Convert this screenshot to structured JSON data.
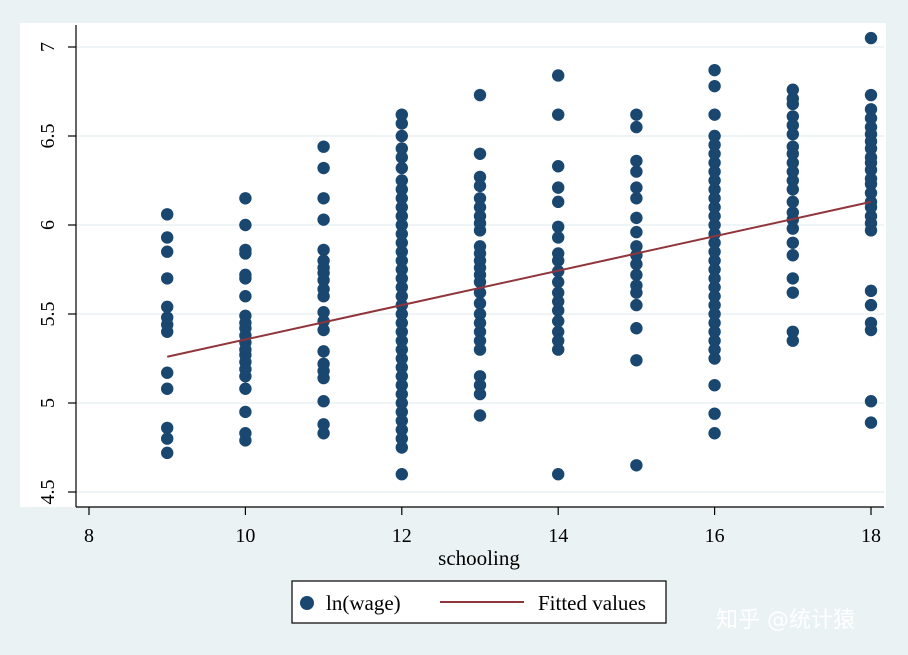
{
  "chart_data": {
    "type": "scatter",
    "title": "",
    "xlabel": "schooling",
    "ylabel": "",
    "xlim": [
      8,
      18
    ],
    "ylim": [
      4.5,
      7
    ],
    "x_ticks": [
      "8",
      "10",
      "12",
      "14",
      "16",
      "18"
    ],
    "y_ticks": [
      "4.5",
      "5",
      "5.5",
      "6",
      "6.5",
      "7"
    ],
    "grid": "horizontal",
    "legend_position": "bottom",
    "series": [
      {
        "name": "ln(wage)",
        "type": "scatter",
        "color": "#1a476f",
        "points": [
          [
            9,
            4.72
          ],
          [
            9,
            4.8
          ],
          [
            9,
            4.86
          ],
          [
            9,
            5.08
          ],
          [
            9,
            5.17
          ],
          [
            9,
            5.4
          ],
          [
            9,
            5.44
          ],
          [
            9,
            5.48
          ],
          [
            9,
            5.54
          ],
          [
            9,
            5.7
          ],
          [
            9,
            5.85
          ],
          [
            9,
            5.93
          ],
          [
            9,
            6.06
          ],
          [
            10,
            4.79
          ],
          [
            10,
            4.83
          ],
          [
            10,
            4.95
          ],
          [
            10,
            5.08
          ],
          [
            10,
            5.15
          ],
          [
            10,
            5.19
          ],
          [
            10,
            5.23
          ],
          [
            10,
            5.27
          ],
          [
            10,
            5.3
          ],
          [
            10,
            5.34
          ],
          [
            10,
            5.38
          ],
          [
            10,
            5.42
          ],
          [
            10,
            5.45
          ],
          [
            10,
            5.49
          ],
          [
            10,
            5.6
          ],
          [
            10,
            5.7
          ],
          [
            10,
            5.72
          ],
          [
            10,
            5.84
          ],
          [
            10,
            5.86
          ],
          [
            10,
            6.0
          ],
          [
            10,
            6.15
          ],
          [
            11,
            4.83
          ],
          [
            11,
            4.88
          ],
          [
            11,
            5.01
          ],
          [
            11,
            5.14
          ],
          [
            11,
            5.18
          ],
          [
            11,
            5.22
          ],
          [
            11,
            5.29
          ],
          [
            11,
            5.41
          ],
          [
            11,
            5.46
          ],
          [
            11,
            5.51
          ],
          [
            11,
            5.6
          ],
          [
            11,
            5.64
          ],
          [
            11,
            5.69
          ],
          [
            11,
            5.73
          ],
          [
            11,
            5.76
          ],
          [
            11,
            5.8
          ],
          [
            11,
            5.86
          ],
          [
            11,
            6.03
          ],
          [
            11,
            6.15
          ],
          [
            11,
            6.32
          ],
          [
            11,
            6.44
          ],
          [
            12,
            4.6
          ],
          [
            12,
            4.75
          ],
          [
            12,
            4.8
          ],
          [
            12,
            4.85
          ],
          [
            12,
            4.9
          ],
          [
            12,
            4.95
          ],
          [
            12,
            5.0
          ],
          [
            12,
            5.05
          ],
          [
            12,
            5.1
          ],
          [
            12,
            5.15
          ],
          [
            12,
            5.2
          ],
          [
            12,
            5.25
          ],
          [
            12,
            5.3
          ],
          [
            12,
            5.35
          ],
          [
            12,
            5.4
          ],
          [
            12,
            5.45
          ],
          [
            12,
            5.5
          ],
          [
            12,
            5.55
          ],
          [
            12,
            5.6
          ],
          [
            12,
            5.65
          ],
          [
            12,
            5.7
          ],
          [
            12,
            5.75
          ],
          [
            12,
            5.8
          ],
          [
            12,
            5.85
          ],
          [
            12,
            5.9
          ],
          [
            12,
            5.95
          ],
          [
            12,
            6.0
          ],
          [
            12,
            6.05
          ],
          [
            12,
            6.1
          ],
          [
            12,
            6.15
          ],
          [
            12,
            6.2
          ],
          [
            12,
            6.25
          ],
          [
            12,
            6.32
          ],
          [
            12,
            6.38
          ],
          [
            12,
            6.43
          ],
          [
            12,
            6.5
          ],
          [
            12,
            6.57
          ],
          [
            12,
            6.62
          ],
          [
            13,
            4.93
          ],
          [
            13,
            5.05
          ],
          [
            13,
            5.1
          ],
          [
            13,
            5.15
          ],
          [
            13,
            5.3
          ],
          [
            13,
            5.35
          ],
          [
            13,
            5.4
          ],
          [
            13,
            5.45
          ],
          [
            13,
            5.5
          ],
          [
            13,
            5.56
          ],
          [
            13,
            5.62
          ],
          [
            13,
            5.68
          ],
          [
            13,
            5.72
          ],
          [
            13,
            5.76
          ],
          [
            13,
            5.8
          ],
          [
            13,
            5.84
          ],
          [
            13,
            5.88
          ],
          [
            13,
            5.97
          ],
          [
            13,
            6.01
          ],
          [
            13,
            6.05
          ],
          [
            13,
            6.1
          ],
          [
            13,
            6.15
          ],
          [
            13,
            6.22
          ],
          [
            13,
            6.27
          ],
          [
            13,
            6.4
          ],
          [
            13,
            6.73
          ],
          [
            14,
            4.6
          ],
          [
            14,
            5.3
          ],
          [
            14,
            5.35
          ],
          [
            14,
            5.4
          ],
          [
            14,
            5.46
          ],
          [
            14,
            5.52
          ],
          [
            14,
            5.57
          ],
          [
            14,
            5.62
          ],
          [
            14,
            5.68
          ],
          [
            14,
            5.74
          ],
          [
            14,
            5.8
          ],
          [
            14,
            5.84
          ],
          [
            14,
            5.93
          ],
          [
            14,
            5.99
          ],
          [
            14,
            6.13
          ],
          [
            14,
            6.21
          ],
          [
            14,
            6.33
          ],
          [
            14,
            6.62
          ],
          [
            14,
            6.84
          ],
          [
            15,
            4.65
          ],
          [
            15,
            5.24
          ],
          [
            15,
            5.42
          ],
          [
            15,
            5.55
          ],
          [
            15,
            5.62
          ],
          [
            15,
            5.66
          ],
          [
            15,
            5.72
          ],
          [
            15,
            5.78
          ],
          [
            15,
            5.83
          ],
          [
            15,
            5.88
          ],
          [
            15,
            5.96
          ],
          [
            15,
            6.04
          ],
          [
            15,
            6.15
          ],
          [
            15,
            6.21
          ],
          [
            15,
            6.3
          ],
          [
            15,
            6.36
          ],
          [
            15,
            6.55
          ],
          [
            15,
            6.62
          ],
          [
            16,
            4.83
          ],
          [
            16,
            4.94
          ],
          [
            16,
            5.1
          ],
          [
            16,
            5.25
          ],
          [
            16,
            5.3
          ],
          [
            16,
            5.35
          ],
          [
            16,
            5.4
          ],
          [
            16,
            5.45
          ],
          [
            16,
            5.5
          ],
          [
            16,
            5.55
          ],
          [
            16,
            5.6
          ],
          [
            16,
            5.65
          ],
          [
            16,
            5.7
          ],
          [
            16,
            5.75
          ],
          [
            16,
            5.8
          ],
          [
            16,
            5.85
          ],
          [
            16,
            5.9
          ],
          [
            16,
            5.95
          ],
          [
            16,
            6.0
          ],
          [
            16,
            6.05
          ],
          [
            16,
            6.1
          ],
          [
            16,
            6.15
          ],
          [
            16,
            6.2
          ],
          [
            16,
            6.25
          ],
          [
            16,
            6.3
          ],
          [
            16,
            6.35
          ],
          [
            16,
            6.4
          ],
          [
            16,
            6.45
          ],
          [
            16,
            6.5
          ],
          [
            16,
            6.62
          ],
          [
            16,
            6.78
          ],
          [
            16,
            6.87
          ],
          [
            17,
            5.35
          ],
          [
            17,
            5.4
          ],
          [
            17,
            5.62
          ],
          [
            17,
            5.7
          ],
          [
            17,
            5.83
          ],
          [
            17,
            5.9
          ],
          [
            17,
            5.98
          ],
          [
            17,
            6.03
          ],
          [
            17,
            6.07
          ],
          [
            17,
            6.13
          ],
          [
            17,
            6.2
          ],
          [
            17,
            6.25
          ],
          [
            17,
            6.3
          ],
          [
            17,
            6.35
          ],
          [
            17,
            6.4
          ],
          [
            17,
            6.44
          ],
          [
            17,
            6.51
          ],
          [
            17,
            6.56
          ],
          [
            17,
            6.61
          ],
          [
            17,
            6.68
          ],
          [
            17,
            6.71
          ],
          [
            17,
            6.76
          ],
          [
            18,
            4.89
          ],
          [
            18,
            5.01
          ],
          [
            18,
            5.41
          ],
          [
            18,
            5.45
          ],
          [
            18,
            5.55
          ],
          [
            18,
            5.63
          ],
          [
            18,
            5.97
          ],
          [
            18,
            6.01
          ],
          [
            18,
            6.05
          ],
          [
            18,
            6.1
          ],
          [
            18,
            6.13
          ],
          [
            18,
            6.18
          ],
          [
            18,
            6.23
          ],
          [
            18,
            6.26
          ],
          [
            18,
            6.31
          ],
          [
            18,
            6.35
          ],
          [
            18,
            6.38
          ],
          [
            18,
            6.43
          ],
          [
            18,
            6.47
          ],
          [
            18,
            6.51
          ],
          [
            18,
            6.55
          ],
          [
            18,
            6.6
          ],
          [
            18,
            6.65
          ],
          [
            18,
            6.73
          ],
          [
            18,
            7.05
          ]
        ]
      },
      {
        "name": "Fitted values",
        "type": "line",
        "color": "#90353b",
        "points": [
          [
            9,
            5.26
          ],
          [
            18,
            6.13
          ]
        ]
      }
    ]
  },
  "watermark": "知乎 @统计猿"
}
